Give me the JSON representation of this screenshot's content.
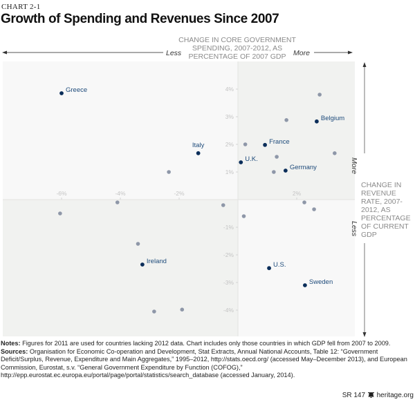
{
  "chart_number": "CHART 2-1",
  "chart_data": {
    "type": "scatter",
    "title": "Growth of Spending and Revenues Since 2007",
    "xlabel": "CHANGE IN CORE GOVERNMENT SPENDING, 2007-2012, AS PERCENTAGE OF 2007 GDP",
    "ylabel": "CHANGE IN REVENUE RATE, 2007-2012, AS PERCENTAGE OF CURRENT GDP",
    "x_direction_labels": {
      "negative": "Less",
      "positive": "More"
    },
    "y_direction_labels": {
      "negative": "Less",
      "positive": "More"
    },
    "xlim": [
      -8.0,
      4.0
    ],
    "ylim": [
      -5.0,
      5.0
    ],
    "x_ticks": [
      {
        "value": -6,
        "label": "-6%"
      },
      {
        "value": -4,
        "label": "-4%"
      },
      {
        "value": -2,
        "label": "-2%"
      },
      {
        "value": 2,
        "label": "2%"
      }
    ],
    "y_ticks": [
      {
        "value": 4,
        "label": "4%"
      },
      {
        "value": 3,
        "label": "3%"
      },
      {
        "value": 2,
        "label": "2%"
      },
      {
        "value": 1,
        "label": "1%"
      },
      {
        "value": -1,
        "label": "-1%"
      },
      {
        "value": -2,
        "label": "-2%"
      },
      {
        "value": -3,
        "label": "-3%"
      },
      {
        "value": -4,
        "label": "-4%"
      }
    ],
    "grid": false,
    "highlight_color": "#0b2e5a",
    "other_color": "#8e97a8",
    "labeled_points": [
      {
        "name": "Greece",
        "x": -6.0,
        "y": 3.85
      },
      {
        "name": "Italy",
        "x": -1.35,
        "y": 1.68
      },
      {
        "name": "U.K.",
        "x": 0.1,
        "y": 1.35
      },
      {
        "name": "France",
        "x": 0.92,
        "y": 1.98
      },
      {
        "name": "Belgium",
        "x": 2.68,
        "y": 2.83
      },
      {
        "name": "Germany",
        "x": 1.62,
        "y": 1.05
      },
      {
        "name": "Ireland",
        "x": -3.25,
        "y": -2.35
      },
      {
        "name": "U.S.",
        "x": 1.06,
        "y": -2.48
      },
      {
        "name": "Sweden",
        "x": 2.28,
        "y": -3.1
      }
    ],
    "other_points": [
      {
        "x": -2.35,
        "y": 1.0
      },
      {
        "x": -6.05,
        "y": -0.5
      },
      {
        "x": -4.1,
        "y": -0.1
      },
      {
        "x": -3.4,
        "y": -1.6
      },
      {
        "x": -2.85,
        "y": -4.05
      },
      {
        "x": -1.9,
        "y": -3.98
      },
      {
        "x": -0.5,
        "y": -0.2
      },
      {
        "x": 0.2,
        "y": -0.6
      },
      {
        "x": 0.25,
        "y": 2.0
      },
      {
        "x": 1.22,
        "y": 1.0
      },
      {
        "x": 1.32,
        "y": 1.55
      },
      {
        "x": 1.65,
        "y": 2.88
      },
      {
        "x": 2.78,
        "y": 3.8
      },
      {
        "x": 3.29,
        "y": 1.68
      },
      {
        "x": 2.26,
        "y": -0.1
      },
      {
        "x": 2.59,
        "y": -0.35
      }
    ]
  },
  "notes": {
    "notes_label": "Notes:",
    "notes_text": " Figures for 2011 are used for countries lacking 2012 data. Chart includes only those countries in which GDP fell from 2007 to 2009.",
    "sources_label": "Sources:",
    "sources_text": " Organisation for Economic Co-operation and Development, Stat Extracts, Annual National Accounts, Table 12: “Government Deficit/Surplus, Revenue, Expenditure and Main Aggregates,” 1995–2012, http://stats.oecd.org/ (accessed May–December 2013), and European Commission, Eurostat, s.v. “General Government Expenditure by Function (COFOG),” http://epp.eurostat.ec.europa.eu/portal/page/portal/statistics/search_database (accessed January, 2014)."
  },
  "footer": {
    "report_id": "SR 147",
    "site": "heritage.org",
    "logo_icon": "liberty-bell-icon"
  }
}
